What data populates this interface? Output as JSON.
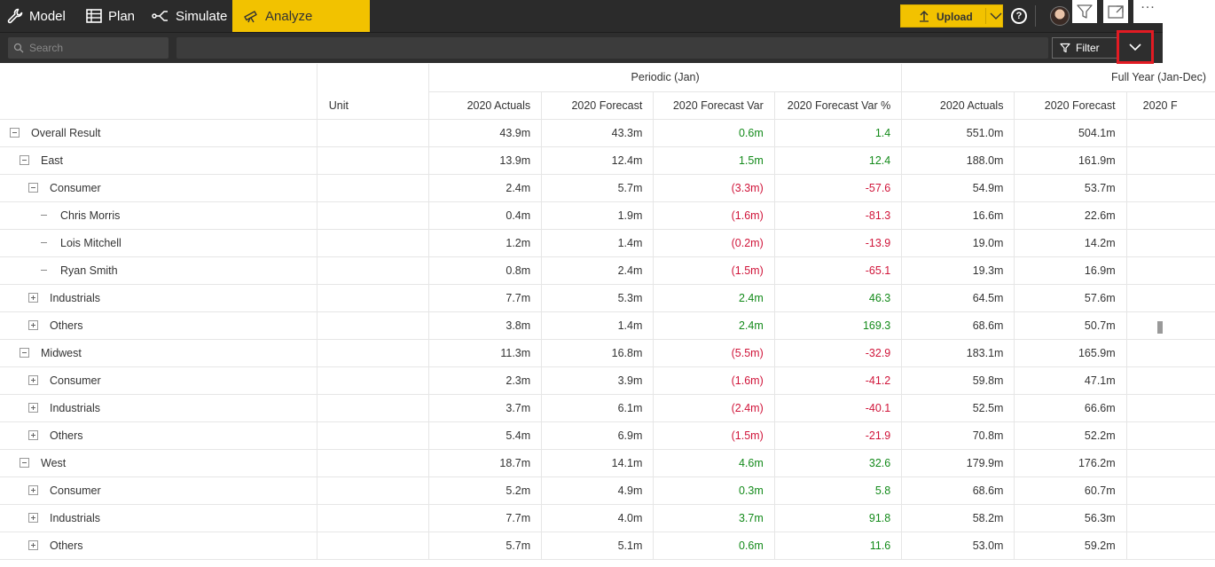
{
  "nav": {
    "tabs": [
      {
        "label": "Model",
        "icon": "wrench-icon"
      },
      {
        "label": "Plan",
        "icon": "table-icon"
      },
      {
        "label": "Simulate",
        "icon": "simulate-icon"
      },
      {
        "label": "Analyze",
        "icon": "telescope-icon",
        "active": true
      }
    ],
    "upload_label": "Upload",
    "accent_color": "#f2c200"
  },
  "search": {
    "placeholder": "Search"
  },
  "toolbar": {
    "filter_label": "Filter"
  },
  "table": {
    "groups": [
      {
        "label": "Periodic (Jan)"
      },
      {
        "label": "Full Year (Jan-Dec)"
      }
    ],
    "headers": {
      "unit": "Unit",
      "cols": [
        "2020 Actuals",
        "2020 Forecast",
        "2020 Forecast Var",
        "2020 Forecast Var %",
        "2020 Actuals",
        "2020 Forecast",
        "2020 F"
      ]
    },
    "rows": [
      {
        "label": "Overall Result",
        "level": 0,
        "toggle": "minus",
        "v": [
          "43.9m",
          "43.3m",
          "0.6m",
          "1.4",
          "551.0m",
          "504.1m"
        ]
      },
      {
        "label": "East",
        "level": 1,
        "toggle": "minus",
        "v": [
          "13.9m",
          "12.4m",
          "1.5m",
          "12.4",
          "188.0m",
          "161.9m"
        ]
      },
      {
        "label": "Consumer",
        "level": 2,
        "toggle": "minus",
        "v": [
          "2.4m",
          "5.7m",
          "(3.3m)",
          "-57.6",
          "54.9m",
          "53.7m"
        ]
      },
      {
        "label": "Chris Morris",
        "level": 3,
        "toggle": "leaf",
        "v": [
          "0.4m",
          "1.9m",
          "(1.6m)",
          "-81.3",
          "16.6m",
          "22.6m"
        ]
      },
      {
        "label": "Lois Mitchell",
        "level": 3,
        "toggle": "leaf",
        "v": [
          "1.2m",
          "1.4m",
          "(0.2m)",
          "-13.9",
          "19.0m",
          "14.2m"
        ]
      },
      {
        "label": "Ryan Smith",
        "level": 3,
        "toggle": "leaf",
        "v": [
          "0.8m",
          "2.4m",
          "(1.5m)",
          "-65.1",
          "19.3m",
          "16.9m"
        ]
      },
      {
        "label": "Industrials",
        "level": 2,
        "toggle": "plus",
        "v": [
          "7.7m",
          "5.3m",
          "2.4m",
          "46.3",
          "64.5m",
          "57.6m"
        ]
      },
      {
        "label": "Others",
        "level": 2,
        "toggle": "plus",
        "v": [
          "3.8m",
          "1.4m",
          "2.4m",
          "169.3",
          "68.6m",
          "50.7m"
        ]
      },
      {
        "label": "Midwest",
        "level": 1,
        "toggle": "minus",
        "v": [
          "11.3m",
          "16.8m",
          "(5.5m)",
          "-32.9",
          "183.1m",
          "165.9m"
        ]
      },
      {
        "label": "Consumer",
        "level": 2,
        "toggle": "plus",
        "v": [
          "2.3m",
          "3.9m",
          "(1.6m)",
          "-41.2",
          "59.8m",
          "47.1m"
        ]
      },
      {
        "label": "Industrials",
        "level": 2,
        "toggle": "plus",
        "v": [
          "3.7m",
          "6.1m",
          "(2.4m)",
          "-40.1",
          "52.5m",
          "66.6m"
        ]
      },
      {
        "label": "Others",
        "level": 2,
        "toggle": "plus",
        "v": [
          "5.4m",
          "6.9m",
          "(1.5m)",
          "-21.9",
          "70.8m",
          "52.2m"
        ]
      },
      {
        "label": "West",
        "level": 1,
        "toggle": "minus",
        "v": [
          "18.7m",
          "14.1m",
          "4.6m",
          "32.6",
          "179.9m",
          "176.2m"
        ]
      },
      {
        "label": "Consumer",
        "level": 2,
        "toggle": "plus",
        "v": [
          "5.2m",
          "4.9m",
          "0.3m",
          "5.8",
          "68.6m",
          "60.7m"
        ]
      },
      {
        "label": "Industrials",
        "level": 2,
        "toggle": "plus",
        "v": [
          "7.7m",
          "4.0m",
          "3.7m",
          "91.8",
          "58.2m",
          "56.3m"
        ]
      },
      {
        "label": "Others",
        "level": 2,
        "toggle": "plus",
        "v": [
          "5.7m",
          "5.1m",
          "0.6m",
          "11.6",
          "53.0m",
          "59.2m"
        ]
      }
    ],
    "positive_color": "#138a1a",
    "negative_color": "#d0153a"
  }
}
